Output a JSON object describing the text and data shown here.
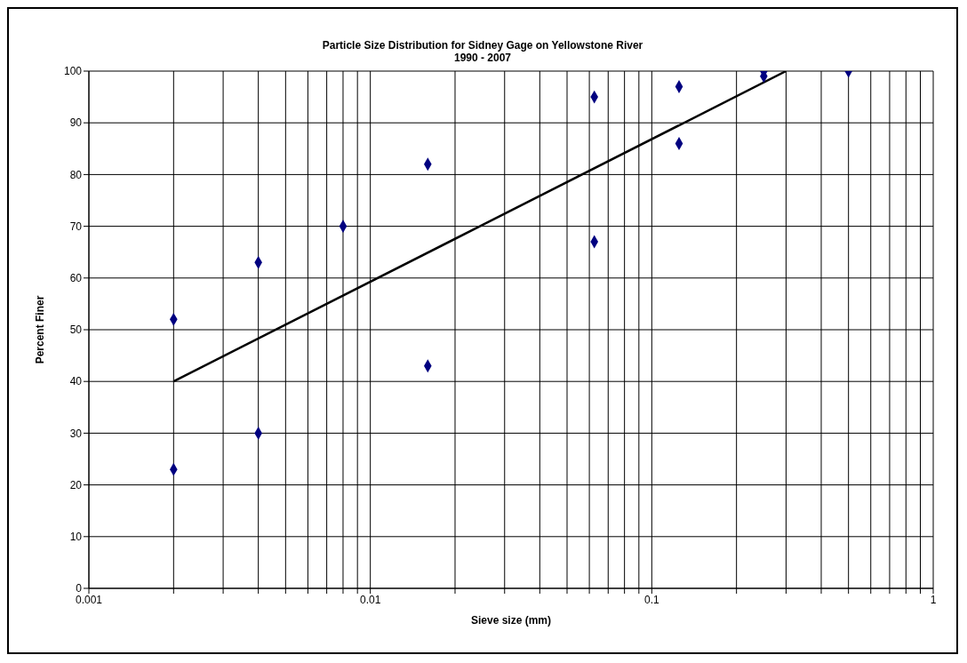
{
  "chart_data": {
    "type": "scatter",
    "title": "Particle Size Distribution for Sidney Gage on Yellowstone River",
    "subtitle": "1990 - 2007",
    "xlabel": "Sieve size (mm)",
    "ylabel": "Percent Finer",
    "log": "x",
    "grid": true,
    "legend": false,
    "marker": "diamond",
    "xlim": [
      0.001,
      1
    ],
    "ylim": [
      0,
      100
    ],
    "xticks": [
      {
        "value": 0.001,
        "label": "0.001"
      },
      {
        "value": 0.002,
        "label": null
      },
      {
        "value": 0.003,
        "label": null
      },
      {
        "value": 0.004,
        "label": null
      },
      {
        "value": 0.005,
        "label": null
      },
      {
        "value": 0.006,
        "label": null
      },
      {
        "value": 0.007,
        "label": null
      },
      {
        "value": 0.008,
        "label": null
      },
      {
        "value": 0.009,
        "label": null
      },
      {
        "value": 0.01,
        "label": "0.01"
      },
      {
        "value": 0.02,
        "label": null
      },
      {
        "value": 0.03,
        "label": null
      },
      {
        "value": 0.04,
        "label": null
      },
      {
        "value": 0.05,
        "label": null
      },
      {
        "value": 0.06,
        "label": null
      },
      {
        "value": 0.07,
        "label": null
      },
      {
        "value": 0.08,
        "label": null
      },
      {
        "value": 0.09,
        "label": null
      },
      {
        "value": 0.1,
        "label": "0.1"
      },
      {
        "value": 0.2,
        "label": null
      },
      {
        "value": 0.3,
        "label": null
      },
      {
        "value": 0.4,
        "label": null
      },
      {
        "value": 0.5,
        "label": null
      },
      {
        "value": 0.6,
        "label": null
      },
      {
        "value": 0.7,
        "label": null
      },
      {
        "value": 0.8,
        "label": null
      },
      {
        "value": 0.9,
        "label": null
      },
      {
        "value": 1,
        "label": "1"
      }
    ],
    "yticks": [
      0,
      10,
      20,
      30,
      40,
      50,
      60,
      70,
      80,
      90,
      100
    ],
    "series": [
      {
        "color": "#000080",
        "x": [
          0.002,
          0.002,
          0.004,
          0.004,
          0.008,
          0.016,
          0.016,
          0.0625,
          0.0625,
          0.125,
          0.125,
          0.25,
          0.25,
          0.5
        ],
        "values": [
          52,
          23,
          63,
          30,
          70,
          82,
          43,
          95,
          67,
          97,
          86,
          100,
          99,
          100
        ]
      },
      {
        "type": "line",
        "color": "#000000",
        "line_style": "solid",
        "marker": "none",
        "x": [
          0.002,
          0.3
        ],
        "values": [
          40,
          100
        ]
      }
    ]
  }
}
